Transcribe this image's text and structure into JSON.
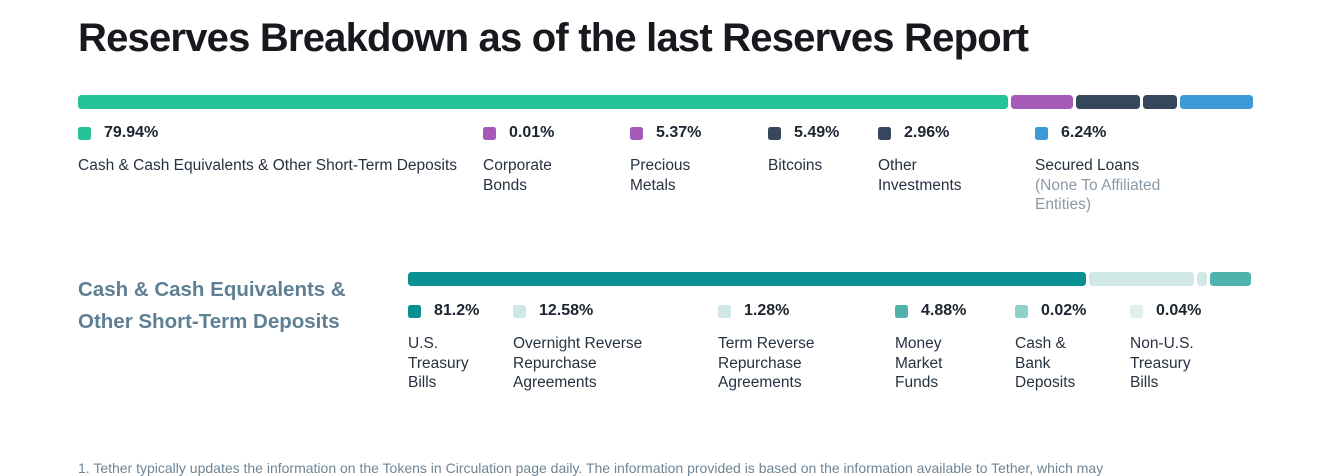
{
  "title": "Reserves Breakdown as of the last Reserves Report",
  "section2_heading": "Cash & Cash Equivalents & Other Short-Term Deposits",
  "footnote": "1. Tether typically updates the information on the Tokens in Circulation page daily. The information provided is based on the information available to Tether, which may",
  "colors": {
    "green": "#24c296",
    "purple": "#a55aba",
    "navy": "#36475c",
    "blue": "#3d9ad9",
    "dark_teal": "#089190",
    "pale_teal": "#cfe7e5",
    "medium_teal": "#4fb2ad",
    "light_teal": "#8fd0cb",
    "very_pale_teal": "#dff0ee",
    "heading_slate": "#5f7f94",
    "sublabel_gray": "#8b99a6",
    "footnote_gray": "#6e8595",
    "text_dark": "#273240"
  },
  "chart_data": [
    {
      "type": "bar",
      "title": "Reserves Breakdown as of the last Reserves Report",
      "unit": "percent",
      "total": 100,
      "legend_position": "below",
      "segments": [
        {
          "label": "Cash & Cash Equivalents & Other Short-Term Deposits",
          "value": 79.94,
          "display": "79.94%",
          "color": "#24c296"
        },
        {
          "label": "Corporate Bonds",
          "value": 0.01,
          "display": "0.01%",
          "color": "#a55aba"
        },
        {
          "label": "Precious Metals",
          "value": 5.37,
          "display": "5.37%",
          "color": "#a55aba"
        },
        {
          "label": "Bitcoins",
          "value": 5.49,
          "display": "5.49%",
          "color": "#36475c"
        },
        {
          "label": "Other Investments",
          "value": 2.96,
          "display": "2.96%",
          "color": "#36475c"
        },
        {
          "label": "Secured Loans",
          "sublabel": "(None To Affiliated Entities)",
          "value": 6.24,
          "display": "6.24%",
          "color": "#3d9ad9"
        }
      ]
    },
    {
      "type": "bar",
      "title": "Cash & Cash Equivalents & Other Short-Term Deposits",
      "unit": "percent",
      "total": 100,
      "legend_position": "below",
      "segments": [
        {
          "label": "U.S. Treasury Bills",
          "value": 81.2,
          "display": "81.2%",
          "color": "#089190"
        },
        {
          "label": "Overnight Reverse Repurchase Agreements",
          "value": 12.58,
          "display": "12.58%",
          "color": "#cfe7e5"
        },
        {
          "label": "Term Reverse Repurchase Agreements",
          "value": 1.28,
          "display": "1.28%",
          "color": "#cfe7e5"
        },
        {
          "label": "Money Market Funds",
          "value": 4.88,
          "display": "4.88%",
          "color": "#4fb2ad"
        },
        {
          "label": "Cash & Bank Deposits",
          "value": 0.02,
          "display": "0.02%",
          "color": "#8fd0cb"
        },
        {
          "label": "Non-U.S. Treasury Bills",
          "value": 0.04,
          "display": "0.04%",
          "color": "#dff0ee"
        }
      ]
    }
  ]
}
